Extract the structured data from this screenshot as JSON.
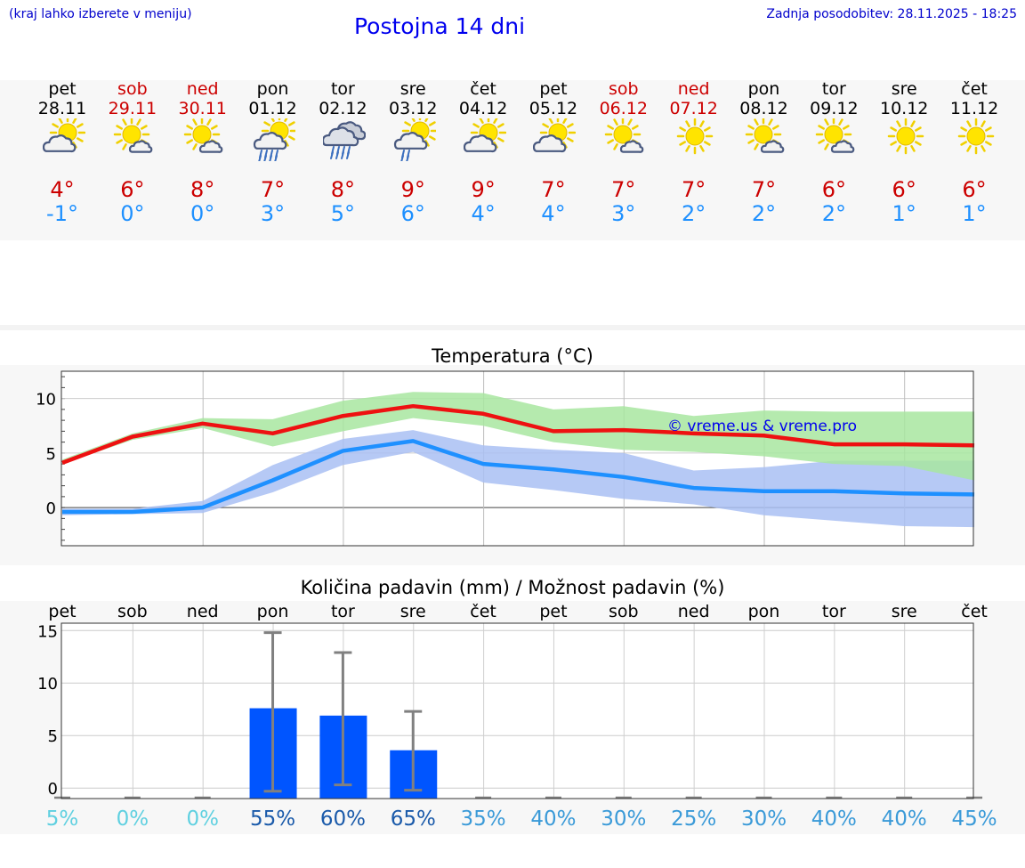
{
  "header": {
    "left_note": "(kraj lahko izberete v meniju)",
    "title": "Postojna 14 dni",
    "updated": "Zadnja posodobitev: 28.11.2025 - 18:25"
  },
  "colors": {
    "weekend": "#cc0000",
    "tmax": "#ee1111",
    "tmin": "#1e90ff",
    "tmax_band": "#a8e6a0",
    "tmin_band": "#a9bff3",
    "bar": "#0055ff",
    "whisker": "#808080"
  },
  "days": [
    {
      "name": "pet",
      "date": "28.11",
      "weekend": false,
      "icon": "partly-cloudy-icon",
      "tmax": "4°",
      "tmin": "-1°"
    },
    {
      "name": "sob",
      "date": "29.11",
      "weekend": true,
      "icon": "sunny-small-cloud-icon",
      "tmax": "6°",
      "tmin": "0°"
    },
    {
      "name": "ned",
      "date": "30.11",
      "weekend": true,
      "icon": "sunny-small-cloud-icon",
      "tmax": "8°",
      "tmin": "0°"
    },
    {
      "name": "pon",
      "date": "01.12",
      "weekend": false,
      "icon": "sun-cloud-rain-icon",
      "tmax": "7°",
      "tmin": "3°"
    },
    {
      "name": "tor",
      "date": "02.12",
      "weekend": false,
      "icon": "cloud-rain-icon",
      "tmax": "8°",
      "tmin": "5°"
    },
    {
      "name": "sre",
      "date": "03.12",
      "weekend": false,
      "icon": "sun-cloud-light-rain-icon",
      "tmax": "9°",
      "tmin": "6°"
    },
    {
      "name": "čet",
      "date": "04.12",
      "weekend": false,
      "icon": "partly-cloudy-icon",
      "tmax": "9°",
      "tmin": "4°"
    },
    {
      "name": "pet",
      "date": "05.12",
      "weekend": false,
      "icon": "partly-cloudy-icon",
      "tmax": "7°",
      "tmin": "4°"
    },
    {
      "name": "sob",
      "date": "06.12",
      "weekend": true,
      "icon": "sunny-small-cloud-icon",
      "tmax": "7°",
      "tmin": "3°"
    },
    {
      "name": "ned",
      "date": "07.12",
      "weekend": true,
      "icon": "sunny-icon",
      "tmax": "7°",
      "tmin": "2°"
    },
    {
      "name": "pon",
      "date": "08.12",
      "weekend": false,
      "icon": "sunny-small-cloud-icon",
      "tmax": "7°",
      "tmin": "2°"
    },
    {
      "name": "tor",
      "date": "09.12",
      "weekend": false,
      "icon": "sunny-small-cloud-icon",
      "tmax": "6°",
      "tmin": "2°"
    },
    {
      "name": "sre",
      "date": "10.12",
      "weekend": false,
      "icon": "sunny-icon",
      "tmax": "6°",
      "tmin": "1°"
    },
    {
      "name": "čet",
      "date": "11.12",
      "weekend": false,
      "icon": "sunny-icon",
      "tmax": "6°",
      "tmin": "1°"
    }
  ],
  "chart_data": [
    {
      "type": "line",
      "title": "Temperatura (°C)",
      "watermark": "© vreme.us & vreme.pro",
      "ylim": [
        -3.5,
        12.5
      ],
      "yticks": [
        "0",
        "5",
        "10"
      ],
      "ytick_values": [
        0,
        5,
        10
      ],
      "x": [
        0,
        1,
        2,
        3,
        4,
        5,
        6,
        7,
        8,
        9,
        10,
        11,
        12,
        13
      ],
      "series": [
        {
          "name": "tmax",
          "values": [
            4.1,
            6.5,
            7.7,
            6.8,
            8.4,
            9.3,
            8.6,
            7.0,
            7.1,
            6.8,
            6.6,
            5.8,
            5.8,
            5.7
          ],
          "band_low": [
            4.0,
            6.2,
            7.3,
            5.6,
            7.0,
            8.2,
            7.5,
            6.0,
            5.3,
            5.1,
            4.7,
            4.0,
            3.8,
            2.5
          ],
          "band_high": [
            4.4,
            6.8,
            8.2,
            8.1,
            9.8,
            10.6,
            10.5,
            9.0,
            9.3,
            8.4,
            8.9,
            8.8,
            8.8,
            8.8
          ]
        },
        {
          "name": "tmin",
          "values": [
            -0.4,
            -0.4,
            0.0,
            2.5,
            5.2,
            6.1,
            4.0,
            3.5,
            2.8,
            1.8,
            1.5,
            1.5,
            1.3,
            1.2
          ],
          "band_low": [
            -0.7,
            -0.6,
            -0.5,
            1.4,
            3.9,
            5.1,
            2.3,
            1.6,
            0.8,
            0.3,
            -0.7,
            -1.2,
            -1.7,
            -1.8
          ],
          "band_high": [
            -0.1,
            -0.1,
            0.6,
            3.9,
            6.3,
            7.1,
            5.7,
            5.3,
            5.0,
            3.4,
            3.7,
            4.3,
            4.3,
            4.3
          ]
        }
      ]
    },
    {
      "type": "bar",
      "title": "Količina padavin (mm) / Možnost padavin (%)",
      "ylim": [
        -1,
        15.7
      ],
      "yticks": [
        "0",
        "5",
        "10",
        "15"
      ],
      "ytick_values": [
        0,
        5,
        10,
        15
      ],
      "categories": [
        "pet",
        "sob",
        "ned",
        "pon",
        "tor",
        "sre",
        "čet",
        "pet",
        "sob",
        "ned",
        "pon",
        "tor",
        "sre",
        "čet"
      ],
      "values": [
        0,
        0,
        0,
        7.6,
        6.9,
        3.6,
        0,
        0,
        0,
        0,
        0,
        0,
        0,
        0
      ],
      "error_low": [
        0,
        0,
        0,
        -0.3,
        0.3,
        -0.2,
        0,
        0,
        0,
        0,
        0,
        0,
        0,
        0
      ],
      "error_high": [
        0,
        0,
        0,
        14.8,
        12.9,
        7.3,
        0,
        0,
        0,
        0,
        0,
        0,
        0,
        0
      ],
      "probability": [
        "5%",
        "0%",
        "0%",
        "55%",
        "60%",
        "65%",
        "35%",
        "40%",
        "30%",
        "25%",
        "30%",
        "40%",
        "40%",
        "45%"
      ],
      "probability_colors": [
        "#5fd0e0",
        "#5fd0e0",
        "#5fd0e0",
        "#1a5aaa",
        "#1a5aaa",
        "#1a5aaa",
        "#3a9ad8",
        "#3a9ad8",
        "#3a9ad8",
        "#3a9ad8",
        "#3a9ad8",
        "#3a9ad8",
        "#3a9ad8",
        "#3a9ad8"
      ]
    }
  ]
}
